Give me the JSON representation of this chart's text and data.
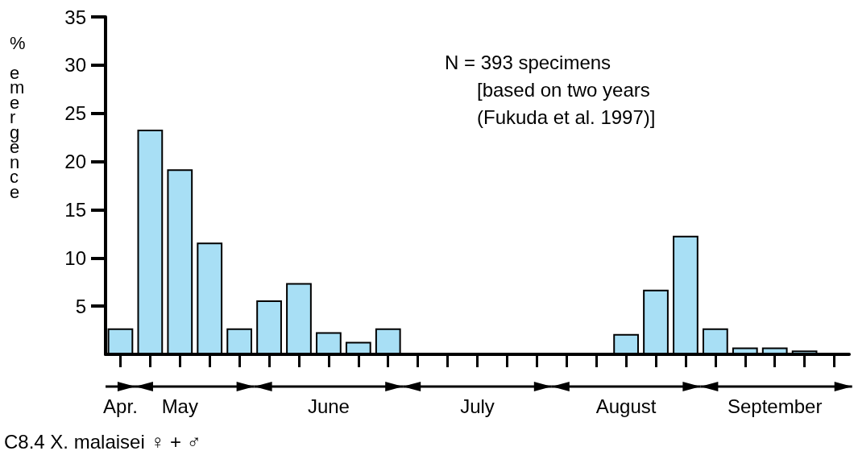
{
  "chart_data": {
    "type": "bar",
    "title": "C8.4 X. malaisei ♀ + ♂",
    "ylabel": "% emergence",
    "categories": [
      "Apr.",
      null,
      "May",
      null,
      null,
      null,
      null,
      "June",
      null,
      null,
      null,
      null,
      "July",
      null,
      null,
      null,
      null,
      "August",
      null,
      null,
      null,
      null,
      "September",
      null,
      null
    ],
    "values": [
      2.7,
      23.3,
      19.2,
      11.6,
      2.7,
      5.6,
      7.4,
      2.3,
      1.3,
      2.7,
      null,
      null,
      null,
      null,
      null,
      null,
      null,
      2.1,
      6.7,
      12.3,
      2.7,
      0.7,
      0.7,
      0.4,
      null
    ],
    "color": "#a8dff5",
    "ylim": [
      0,
      35
    ],
    "yticks": [
      5,
      10,
      15,
      20,
      25,
      30,
      35
    ],
    "grid": false,
    "annotations": [
      "N = 393 specimens\n      [based on two years\n      (Fukuda et al. 1997)]"
    ]
  }
}
